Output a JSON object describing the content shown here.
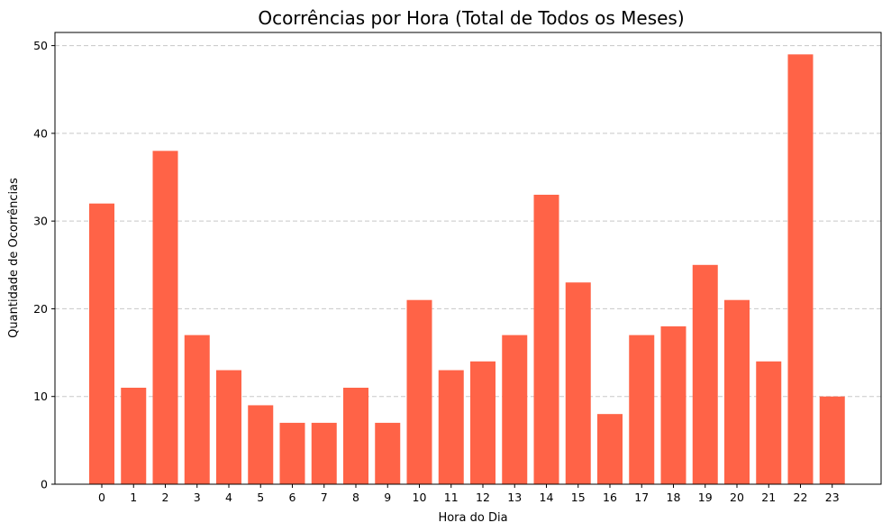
{
  "chart_data": {
    "type": "bar",
    "title": "Ocorrências por Hora (Total de Todos os Meses)",
    "xlabel": "Hora do Dia",
    "ylabel": "Quantidade de Ocorrências",
    "categories": [
      "0",
      "1",
      "2",
      "3",
      "4",
      "5",
      "6",
      "7",
      "8",
      "9",
      "10",
      "11",
      "12",
      "13",
      "14",
      "15",
      "16",
      "17",
      "18",
      "19",
      "20",
      "21",
      "22",
      "23"
    ],
    "values": [
      32,
      11,
      38,
      17,
      13,
      9,
      7,
      7,
      11,
      7,
      21,
      13,
      14,
      17,
      33,
      23,
      8,
      17,
      18,
      25,
      21,
      14,
      49,
      10
    ],
    "ylim": [
      0,
      51.5
    ],
    "yticks": [
      0,
      10,
      20,
      30,
      40,
      50
    ],
    "grid": "y-dashed",
    "bar_color": "#ff6347",
    "grid_color": "#c8c8c8"
  }
}
